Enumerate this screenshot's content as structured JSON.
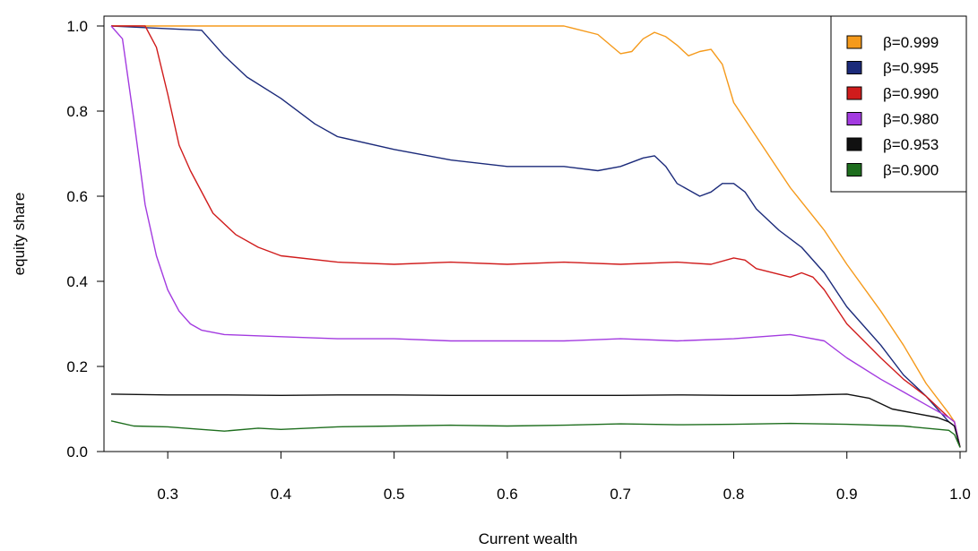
{
  "chart_data": {
    "type": "line",
    "title": "",
    "xlabel": "Current wealth",
    "ylabel": "equity share",
    "xlim": [
      0.25,
      1.0
    ],
    "ylim": [
      0.0,
      1.0
    ],
    "x_ticks": [
      "0.3",
      "0.4",
      "0.5",
      "0.6",
      "0.7",
      "0.8",
      "0.9",
      "1.0"
    ],
    "y_ticks": [
      "0.0",
      "0.2",
      "0.4",
      "0.6",
      "0.8",
      "1.0"
    ],
    "grid": false,
    "legend_position": "top-right",
    "series": [
      {
        "name": "β=0.999",
        "color": "#f59a1b",
        "x": [
          0.25,
          0.3,
          0.4,
          0.45,
          0.5,
          0.55,
          0.6,
          0.65,
          0.68,
          0.7,
          0.71,
          0.72,
          0.73,
          0.74,
          0.75,
          0.76,
          0.77,
          0.78,
          0.79,
          0.8,
          0.82,
          0.85,
          0.88,
          0.9,
          0.93,
          0.95,
          0.97,
          0.99,
          0.995,
          1.0
        ],
        "y": [
          1.0,
          1.0,
          1.0,
          1.0,
          1.0,
          1.0,
          1.0,
          1.0,
          0.98,
          0.935,
          0.94,
          0.97,
          0.985,
          0.975,
          0.955,
          0.93,
          0.94,
          0.945,
          0.91,
          0.82,
          0.74,
          0.62,
          0.52,
          0.44,
          0.33,
          0.25,
          0.16,
          0.09,
          0.07,
          0.01
        ]
      },
      {
        "name": "β=0.995",
        "color": "#1b2a7a",
        "x": [
          0.25,
          0.33,
          0.35,
          0.37,
          0.4,
          0.43,
          0.45,
          0.5,
          0.55,
          0.6,
          0.65,
          0.68,
          0.7,
          0.72,
          0.73,
          0.74,
          0.75,
          0.77,
          0.78,
          0.79,
          0.8,
          0.81,
          0.82,
          0.84,
          0.86,
          0.88,
          0.9,
          0.93,
          0.95,
          0.97,
          0.99,
          0.995,
          1.0
        ],
        "y": [
          1.0,
          0.99,
          0.93,
          0.88,
          0.83,
          0.77,
          0.74,
          0.71,
          0.685,
          0.67,
          0.67,
          0.66,
          0.67,
          0.69,
          0.695,
          0.67,
          0.63,
          0.6,
          0.61,
          0.63,
          0.63,
          0.61,
          0.57,
          0.52,
          0.48,
          0.42,
          0.34,
          0.25,
          0.18,
          0.13,
          0.07,
          0.06,
          0.01
        ]
      },
      {
        "name": "β=0.990",
        "color": "#d01c1c",
        "x": [
          0.25,
          0.28,
          0.29,
          0.3,
          0.31,
          0.32,
          0.34,
          0.36,
          0.38,
          0.4,
          0.45,
          0.5,
          0.55,
          0.6,
          0.65,
          0.7,
          0.75,
          0.78,
          0.8,
          0.81,
          0.82,
          0.85,
          0.86,
          0.87,
          0.88,
          0.9,
          0.93,
          0.95,
          0.97,
          0.99,
          0.995,
          1.0
        ],
        "y": [
          1.0,
          1.0,
          0.95,
          0.84,
          0.72,
          0.66,
          0.56,
          0.51,
          0.48,
          0.46,
          0.445,
          0.44,
          0.445,
          0.44,
          0.445,
          0.44,
          0.445,
          0.44,
          0.455,
          0.45,
          0.43,
          0.41,
          0.42,
          0.41,
          0.38,
          0.3,
          0.22,
          0.17,
          0.13,
          0.08,
          0.07,
          0.01
        ]
      },
      {
        "name": "β=0.980",
        "color": "#a33be0",
        "x": [
          0.25,
          0.26,
          0.27,
          0.28,
          0.29,
          0.3,
          0.31,
          0.32,
          0.33,
          0.35,
          0.4,
          0.45,
          0.5,
          0.55,
          0.6,
          0.65,
          0.7,
          0.75,
          0.8,
          0.85,
          0.88,
          0.9,
          0.93,
          0.95,
          0.97,
          0.99,
          0.995,
          1.0
        ],
        "y": [
          1.0,
          0.97,
          0.78,
          0.58,
          0.46,
          0.38,
          0.33,
          0.3,
          0.285,
          0.275,
          0.27,
          0.265,
          0.265,
          0.26,
          0.26,
          0.26,
          0.265,
          0.26,
          0.265,
          0.275,
          0.26,
          0.22,
          0.17,
          0.14,
          0.11,
          0.08,
          0.07,
          0.01
        ]
      },
      {
        "name": "β=0.953",
        "color": "#111111",
        "x": [
          0.25,
          0.3,
          0.35,
          0.4,
          0.45,
          0.5,
          0.55,
          0.6,
          0.65,
          0.7,
          0.75,
          0.8,
          0.85,
          0.9,
          0.92,
          0.94,
          0.96,
          0.98,
          0.99,
          0.995,
          1.0
        ],
        "y": [
          0.135,
          0.133,
          0.133,
          0.132,
          0.133,
          0.133,
          0.132,
          0.132,
          0.132,
          0.132,
          0.133,
          0.132,
          0.132,
          0.135,
          0.125,
          0.1,
          0.09,
          0.08,
          0.07,
          0.06,
          0.01
        ]
      },
      {
        "name": "β=0.900",
        "color": "#1e6e1e",
        "x": [
          0.25,
          0.27,
          0.3,
          0.33,
          0.35,
          0.38,
          0.4,
          0.45,
          0.5,
          0.55,
          0.6,
          0.65,
          0.7,
          0.75,
          0.8,
          0.85,
          0.9,
          0.95,
          0.97,
          0.99,
          0.995,
          1.0
        ],
        "y": [
          0.072,
          0.06,
          0.058,
          0.052,
          0.048,
          0.055,
          0.052,
          0.058,
          0.06,
          0.062,
          0.06,
          0.062,
          0.065,
          0.063,
          0.064,
          0.066,
          0.064,
          0.06,
          0.055,
          0.05,
          0.04,
          0.01
        ]
      }
    ]
  }
}
